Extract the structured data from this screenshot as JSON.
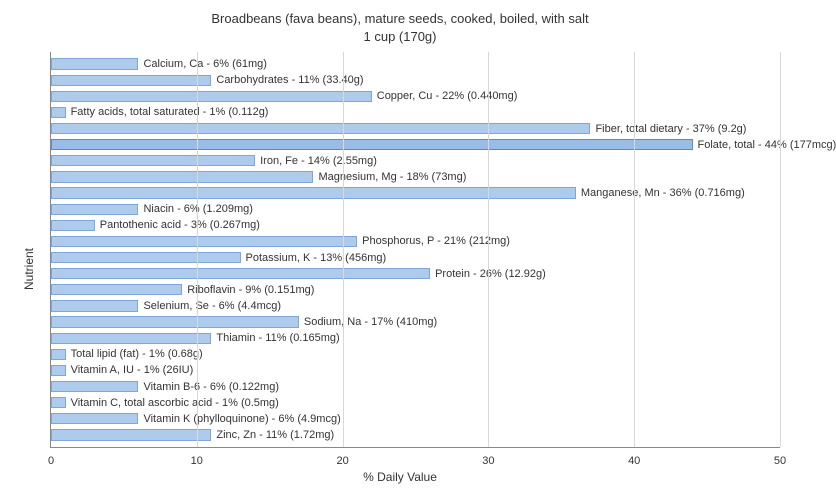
{
  "title_line1": "Broadbeans (fava beans), mature seeds, cooked, boiled, with salt",
  "title_line2": "1 cup (170g)",
  "ylabel": "Nutrient",
  "xlabel": "% Daily Value",
  "chart": {
    "type": "bar",
    "orientation": "horizontal",
    "xlim": [
      0,
      50
    ],
    "xtick_step": 10,
    "bar_color": "#aecbeb",
    "bar_border_color": "#7ea6d9",
    "bar_highlight_color": "#9bbce6",
    "bar_highlight_border_color": "#5b8bc7",
    "grid_color": "#d8d8d8",
    "axis_color": "#888888",
    "background_color": "#ffffff",
    "title_fontsize": 13,
    "label_fontsize": 12,
    "tick_fontsize": 11,
    "bar_label_fontsize": 11,
    "text_color": "#333333",
    "highlighted_index": 5,
    "items": [
      {
        "label": "Calcium, Ca - 6% (61mg)",
        "value": 6
      },
      {
        "label": "Carbohydrates - 11% (33.40g)",
        "value": 11
      },
      {
        "label": "Copper, Cu - 22% (0.440mg)",
        "value": 22
      },
      {
        "label": "Fatty acids, total saturated - 1% (0.112g)",
        "value": 1
      },
      {
        "label": "Fiber, total dietary - 37% (9.2g)",
        "value": 37
      },
      {
        "label": "Folate, total - 44% (177mcg)",
        "value": 44
      },
      {
        "label": "Iron, Fe - 14% (2.55mg)",
        "value": 14
      },
      {
        "label": "Magnesium, Mg - 18% (73mg)",
        "value": 18
      },
      {
        "label": "Manganese, Mn - 36% (0.716mg)",
        "value": 36
      },
      {
        "label": "Niacin - 6% (1.209mg)",
        "value": 6
      },
      {
        "label": "Pantothenic acid - 3% (0.267mg)",
        "value": 3
      },
      {
        "label": "Phosphorus, P - 21% (212mg)",
        "value": 21
      },
      {
        "label": "Potassium, K - 13% (456mg)",
        "value": 13
      },
      {
        "label": "Protein - 26% (12.92g)",
        "value": 26
      },
      {
        "label": "Riboflavin - 9% (0.151mg)",
        "value": 9
      },
      {
        "label": "Selenium, Se - 6% (4.4mcg)",
        "value": 6
      },
      {
        "label": "Sodium, Na - 17% (410mg)",
        "value": 17
      },
      {
        "label": "Thiamin - 11% (0.165mg)",
        "value": 11
      },
      {
        "label": "Total lipid (fat) - 1% (0.68g)",
        "value": 1
      },
      {
        "label": "Vitamin A, IU - 1% (26IU)",
        "value": 1
      },
      {
        "label": "Vitamin B-6 - 6% (0.122mg)",
        "value": 6
      },
      {
        "label": "Vitamin C, total ascorbic acid - 1% (0.5mg)",
        "value": 1
      },
      {
        "label": "Vitamin K (phylloquinone) - 6% (4.9mcg)",
        "value": 6
      },
      {
        "label": "Zinc, Zn - 11% (1.72mg)",
        "value": 11
      }
    ]
  }
}
